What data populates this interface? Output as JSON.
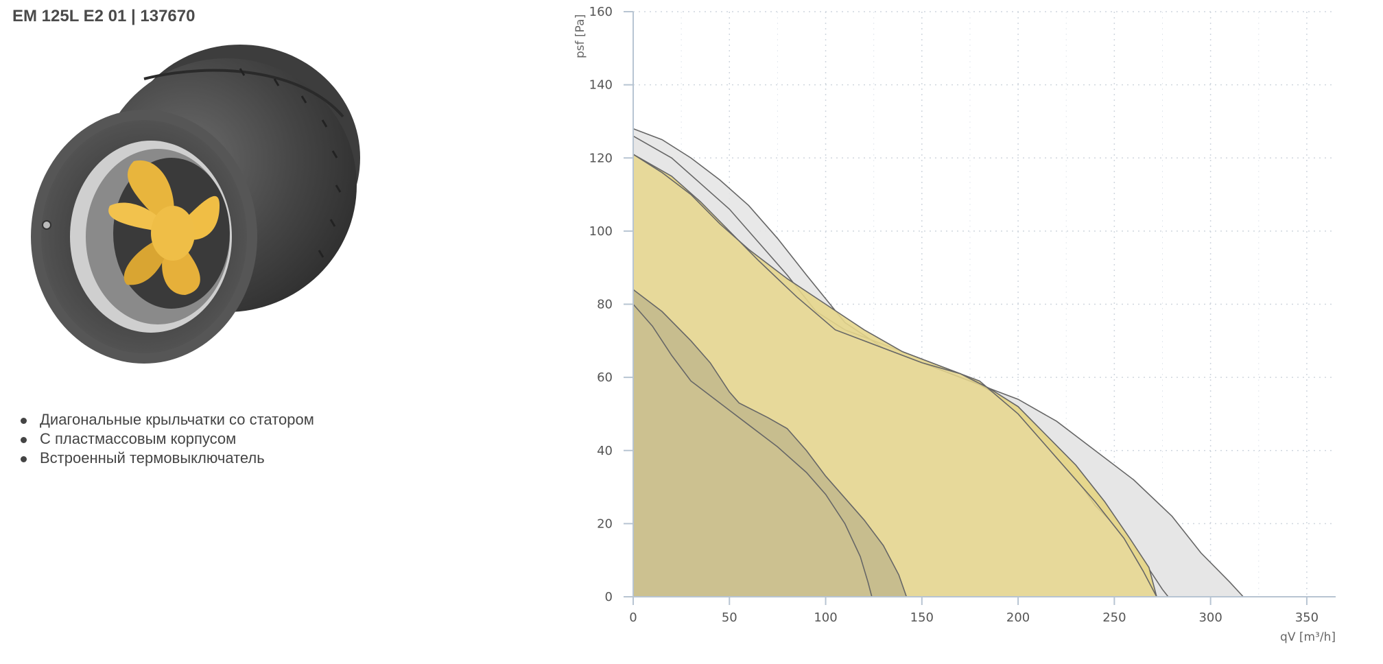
{
  "page": {
    "title": "EM 125L E2 01 | 137670"
  },
  "features": [
    "Диагональные крыльчатки со статором",
    "С пластмассовым корпусом",
    "Встроенный термовыключатель"
  ],
  "icons": {
    "product": "inline-duct-fan-image",
    "bullet": "bullet-dot"
  },
  "chart_data": {
    "type": "area",
    "xlabel": "qV [m³/h]",
    "ylabel": "psf [Pa]",
    "xlim": [
      0,
      365
    ],
    "ylim": [
      0,
      160
    ],
    "xticks": [
      0,
      50,
      100,
      150,
      200,
      250,
      300,
      350
    ],
    "yticks": [
      0,
      20,
      40,
      60,
      80,
      100,
      120,
      140,
      160
    ],
    "grid": true,
    "colors": {
      "grey": "#e6e6e6",
      "yellow": "#e6d68c",
      "dark": "#c7bc8e",
      "line": "#666666"
    },
    "series": [
      {
        "fill": "#e6e6e6",
        "upper": [
          [
            0,
            128
          ],
          [
            15,
            125
          ],
          [
            30,
            120
          ],
          [
            45,
            114
          ],
          [
            60,
            107
          ],
          [
            75,
            98
          ],
          [
            90,
            88
          ],
          [
            110,
            75
          ],
          [
            130,
            68
          ],
          [
            150,
            64
          ],
          [
            170,
            60
          ],
          [
            180,
            58
          ],
          [
            200,
            52
          ],
          [
            220,
            40
          ],
          [
            240,
            25
          ],
          [
            255,
            17
          ],
          [
            265,
            10
          ],
          [
            275,
            2
          ],
          [
            278,
            0
          ]
        ],
        "lower": [
          [
            0,
            126
          ],
          [
            20,
            120
          ],
          [
            35,
            113
          ],
          [
            50,
            106
          ],
          [
            65,
            97
          ],
          [
            80,
            88
          ],
          [
            95,
            78
          ],
          [
            110,
            73
          ],
          [
            130,
            69
          ],
          [
            150,
            65
          ],
          [
            170,
            61
          ],
          [
            180,
            58
          ],
          [
            190,
            56
          ],
          [
            200,
            54
          ],
          [
            220,
            48
          ],
          [
            240,
            40
          ],
          [
            260,
            32
          ],
          [
            280,
            22
          ],
          [
            295,
            12
          ],
          [
            310,
            4
          ],
          [
            317,
            0
          ]
        ]
      },
      {
        "fill": "#e6d68c",
        "upper": [
          [
            0,
            121
          ],
          [
            15,
            116
          ],
          [
            30,
            110
          ],
          [
            45,
            102
          ],
          [
            60,
            95
          ],
          [
            80,
            87
          ],
          [
            100,
            80
          ],
          [
            120,
            73
          ],
          [
            140,
            67
          ],
          [
            160,
            63
          ],
          [
            180,
            59
          ],
          [
            200,
            50
          ],
          [
            220,
            38
          ],
          [
            240,
            26
          ],
          [
            255,
            16
          ],
          [
            265,
            7
          ],
          [
            272,
            0
          ]
        ],
        "lower": [
          [
            0,
            121
          ],
          [
            20,
            115
          ],
          [
            35,
            108
          ],
          [
            50,
            100
          ],
          [
            65,
            92
          ],
          [
            85,
            82
          ],
          [
            105,
            73
          ],
          [
            130,
            68
          ],
          [
            150,
            64
          ],
          [
            170,
            61
          ],
          [
            185,
            57
          ],
          [
            200,
            52
          ],
          [
            215,
            44
          ],
          [
            230,
            36
          ],
          [
            245,
            26
          ],
          [
            258,
            16
          ],
          [
            268,
            8
          ],
          [
            272,
            0
          ]
        ]
      },
      {
        "fill": "#c7bc8e",
        "upper": [
          [
            0,
            84
          ],
          [
            15,
            78
          ],
          [
            30,
            70
          ],
          [
            40,
            64
          ],
          [
            50,
            56
          ],
          [
            55,
            53
          ],
          [
            70,
            49
          ],
          [
            80,
            46
          ],
          [
            90,
            40
          ],
          [
            100,
            33
          ],
          [
            110,
            27
          ],
          [
            120,
            21
          ],
          [
            130,
            14
          ],
          [
            138,
            6
          ],
          [
            142,
            0
          ]
        ],
        "lower": [
          [
            0,
            80
          ],
          [
            10,
            74
          ],
          [
            20,
            66
          ],
          [
            30,
            59
          ],
          [
            40,
            55
          ],
          [
            50,
            51
          ],
          [
            60,
            47
          ],
          [
            75,
            41
          ],
          [
            90,
            34
          ],
          [
            100,
            28
          ],
          [
            110,
            20
          ],
          [
            118,
            11
          ],
          [
            122,
            4
          ],
          [
            124,
            0
          ]
        ]
      }
    ]
  }
}
